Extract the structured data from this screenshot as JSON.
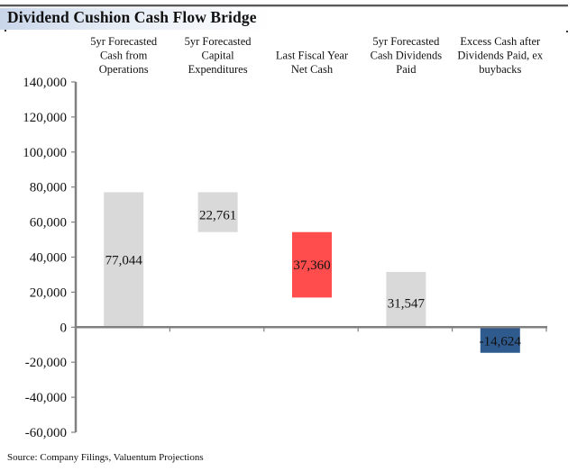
{
  "title": "Dividend Cushion Cash Flow Bridge",
  "source": "Source: Company Filings, Valuentum Projections",
  "chart_data": {
    "type": "bar",
    "subtype": "waterfall",
    "title": "Dividend Cushion Cash Flow Bridge",
    "xlabel": "",
    "ylabel": "",
    "ylim": [
      -60000,
      140000
    ],
    "yticks": [
      140000,
      120000,
      100000,
      80000,
      60000,
      40000,
      20000,
      0,
      -20000,
      -40000,
      -60000
    ],
    "ytick_labels": [
      "140,000",
      "120,000",
      "100,000",
      "80,000",
      "60,000",
      "40,000",
      "20,000",
      "0",
      "-20,000",
      "-40,000",
      "-60,000"
    ],
    "grid": false,
    "legend": "none",
    "categories": [
      [
        "5yr Forecasted",
        "Cash from",
        "Operations"
      ],
      [
        "5yr Forecasted",
        "Capital",
        "Expenditures"
      ],
      [
        "Last Fiscal Year",
        "Net Cash"
      ],
      [
        "5yr Forecasted",
        "Cash Dividends",
        "Paid"
      ],
      [
        "Excess Cash after",
        "Dividends Paid, ex",
        "buybacks"
      ]
    ],
    "bars": [
      {
        "value": 77044,
        "start": 0,
        "end": 77044,
        "label": "77,044",
        "color": "#d9d9d9"
      },
      {
        "value": 22761,
        "start": 77044,
        "end": 54283,
        "label": "22,761",
        "color": "#d9d9d9"
      },
      {
        "value": 37360,
        "start": 54283,
        "end": 16923,
        "label": "37,360",
        "color": "#ff4d4d"
      },
      {
        "value": 31547,
        "start": 0,
        "end": 31547,
        "label": "31,547",
        "color": "#d9d9d9"
      },
      {
        "value": -14624,
        "start": 0,
        "end": -14624,
        "label": "-14,624",
        "color": "#2e5a8e"
      }
    ]
  },
  "colors": {
    "axis": "#808080",
    "neutral_bar": "#d9d9d9",
    "negative_highlight": "#ff4d4d",
    "result_bar": "#2e5a8e"
  }
}
